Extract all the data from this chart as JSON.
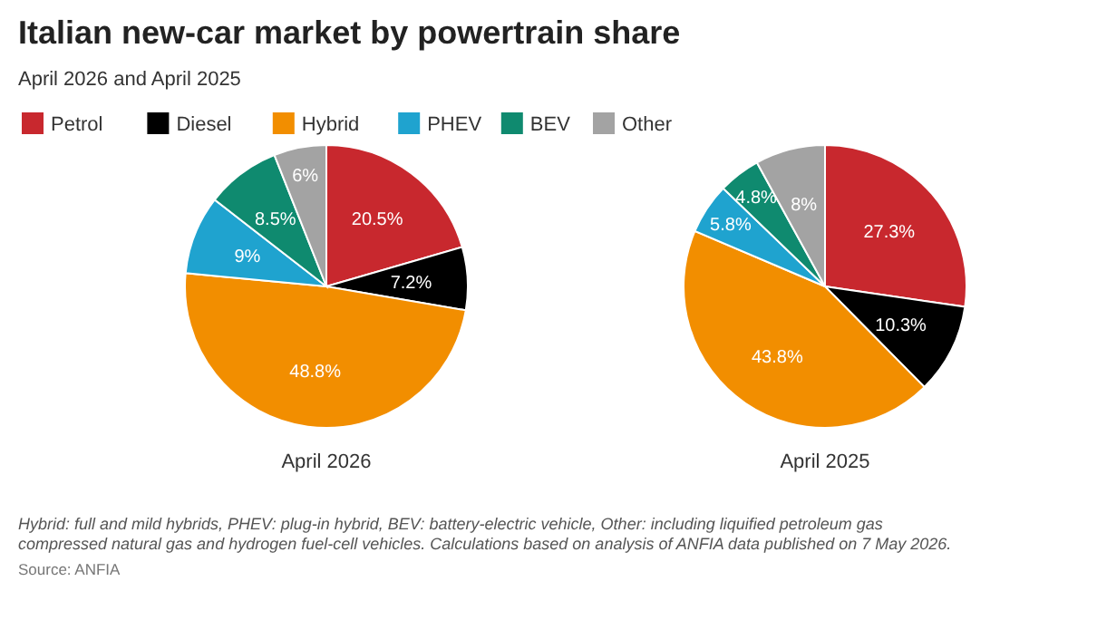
{
  "chart_data": [
    {
      "type": "pie",
      "title": "Italian new-car market by powertrain share",
      "subtitle": "April 2026 and April 2025",
      "xlabel": "April 2026",
      "categories": [
        "Petrol",
        "Diesel",
        "Hybrid",
        "PHEV",
        "BEV",
        "Other"
      ],
      "values": [
        20.5,
        7.2,
        48.8,
        9,
        8.5,
        6
      ],
      "value_labels": [
        "20.5%",
        "7.2%",
        "48.8%",
        "9%",
        "8.5%",
        "6%"
      ],
      "colors": [
        "#c8282e",
        "#000000",
        "#f28e00",
        "#1fa3cf",
        "#0f8a6f",
        "#a3a3a3"
      ],
      "legend": "top"
    },
    {
      "type": "pie",
      "xlabel": "April 2025",
      "categories": [
        null,
        null,
        null,
        null,
        null,
        null
      ],
      "values": [
        27.3,
        10.3,
        43.8,
        5.8,
        4.8,
        8
      ],
      "value_labels": [
        "27.3%",
        "10.3%",
        "43.8%",
        "5.8%",
        "4.8%",
        "8%"
      ],
      "colors": [
        "#c8282e",
        "#000000",
        "#f28e00",
        "#1fa3cf",
        "#0f8a6f",
        "#a3a3a3"
      ],
      "annotations": [
        "Hybrid: full and mild hybrids, PHEV: plug-in hybrid, BEV: battery-electric vehicle, Other: including liquified petroleum gas compressed natural gas and hydrogen fuel-cell vehicles. Calculations based on analysis of ANFIA data published on 7 May 2026.",
        "Source: ANFIA"
      ]
    }
  ]
}
